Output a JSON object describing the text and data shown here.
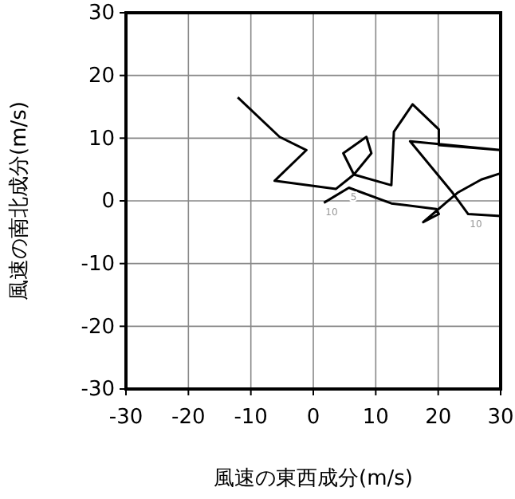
{
  "chart_data": {
    "type": "line",
    "xlabel": "風速の東西成分(m/s)",
    "ylabel": "風速の南北成分(m/s)",
    "xlim": [
      -30,
      30
    ],
    "ylim": [
      -30,
      30
    ],
    "xticks": [
      -30,
      -20,
      -10,
      0,
      10,
      20,
      30
    ],
    "yticks": [
      -30,
      -20,
      -10,
      0,
      10,
      20,
      30
    ],
    "grid": true,
    "marker": "none",
    "line_style": "solid",
    "x": [
      1.7,
      5.7,
      12.5,
      19.7,
      20.1,
      17.6,
      23.1,
      26.9,
      30,
      30,
      24.8,
      22.3,
      15.5,
      30,
      20.1,
      20.1,
      15.9,
      12.9,
      12.5,
      6.5,
      9.3,
      8.5,
      4.8,
      6.5,
      3.6,
      -6.2,
      -1.1,
      -5.4,
      -12.1
    ],
    "series": [
      {
        "color": "#000000",
        "values": [
          -0.3,
          2.1,
          -0.4,
          -1.3,
          -2.1,
          -3.4,
          1.3,
          3.4,
          4.4,
          -2.4,
          -2.1,
          1.3,
          9.5,
          8.1,
          8.9,
          11.4,
          15.4,
          11.0,
          2.5,
          4.2,
          7.6,
          10.2,
          7.6,
          4.2,
          1.9,
          3.2,
          8.1,
          10.2,
          16.5
        ]
      }
    ],
    "annotations": [
      {
        "text": "5",
        "x": 5.7,
        "y": 2.1
      },
      {
        "text": "10",
        "x": 1.7,
        "y": -0.3
      },
      {
        "text": "10",
        "x": 24.8,
        "y": -2.1
      }
    ]
  }
}
